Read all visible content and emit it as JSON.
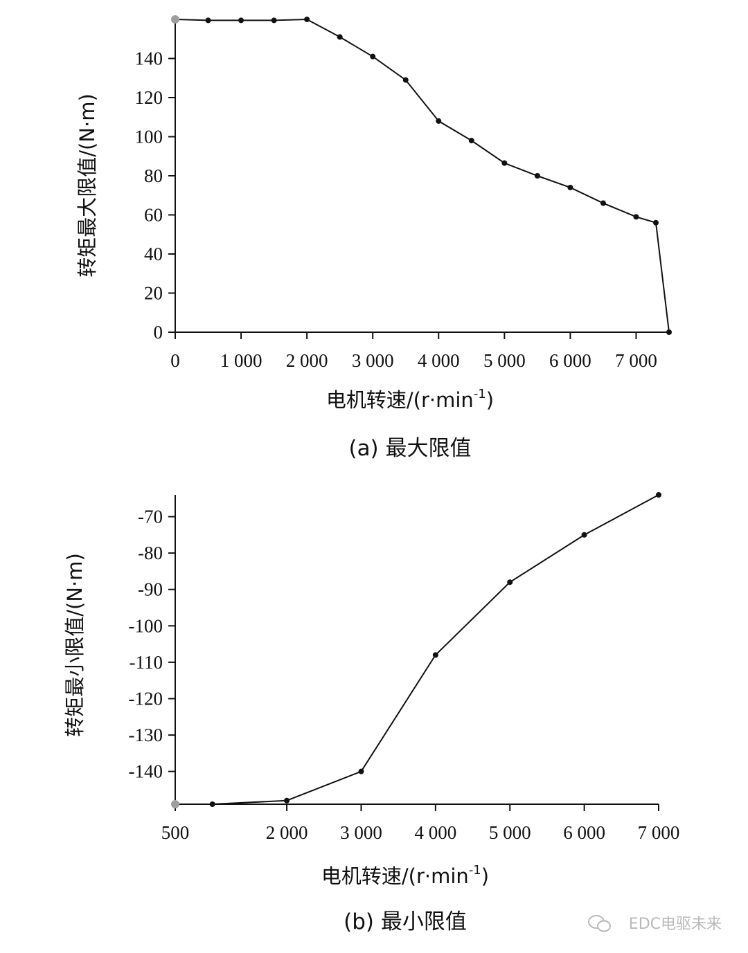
{
  "chart_data": [
    {
      "type": "line",
      "caption": "(a) 最大限值",
      "xlabel": "电机转速/(r·min",
      "xlabel_sup": "-1",
      "xlabel_tail": ")",
      "ylabel": "转矩最大限值/(N·m)",
      "xlim": [
        0,
        7500
      ],
      "ylim": [
        0,
        160
      ],
      "xticks": [
        0,
        1000,
        2000,
        3000,
        4000,
        5000,
        6000,
        7000
      ],
      "xtick_labels": [
        "0",
        "1 000",
        "2 000",
        "3 000",
        "4 000",
        "5 000",
        "6 000",
        "7 000"
      ],
      "yticks": [
        0,
        20,
        40,
        60,
        80,
        100,
        120,
        140
      ],
      "ytick_labels": [
        "0",
        "20",
        "40",
        "60",
        "80",
        "100",
        "120",
        "140"
      ],
      "x": [
        0,
        500,
        1000,
        1500,
        2000,
        2500,
        3000,
        3500,
        4000,
        4500,
        5000,
        5500,
        6000,
        6500,
        7000,
        7300,
        7500
      ],
      "y": [
        160,
        159.5,
        159.5,
        159.5,
        160,
        151,
        141,
        129,
        108,
        98,
        86.5,
        80,
        74,
        66,
        59,
        56,
        0
      ],
      "start_marker_color": "#9e9e9e",
      "line_color": "#111111"
    },
    {
      "type": "line",
      "caption": "(b) 最小限值",
      "xlabel": "电机转速/(r·min",
      "xlabel_sup": "-1",
      "xlabel_tail": ")",
      "ylabel": "转矩最小限值/(N·m)",
      "xlim": [
        500,
        7000
      ],
      "ylim": [
        -149,
        -64
      ],
      "xticks": [
        500,
        2000,
        3000,
        4000,
        5000,
        6000,
        7000
      ],
      "xtick_labels": [
        "500",
        "2 000",
        "3 000",
        "4 000",
        "5 000",
        "6 000",
        "7 000"
      ],
      "yticks": [
        -70,
        -80,
        -90,
        -100,
        -110,
        -120,
        -130,
        -140
      ],
      "ytick_labels": [
        "-70",
        "-80",
        "-90",
        "-100",
        "-110",
        "-120",
        "-130",
        "-140"
      ],
      "x": [
        500,
        1000,
        2000,
        3000,
        4000,
        5000,
        6000,
        7000
      ],
      "y": [
        -149,
        -149,
        -148,
        -140,
        -108,
        -88,
        -75,
        -64
      ],
      "start_marker_color": "#9e9e9e",
      "line_color": "#111111"
    }
  ],
  "watermark": {
    "text": "EDC电驱未来",
    "icon": "wechat-icon"
  }
}
